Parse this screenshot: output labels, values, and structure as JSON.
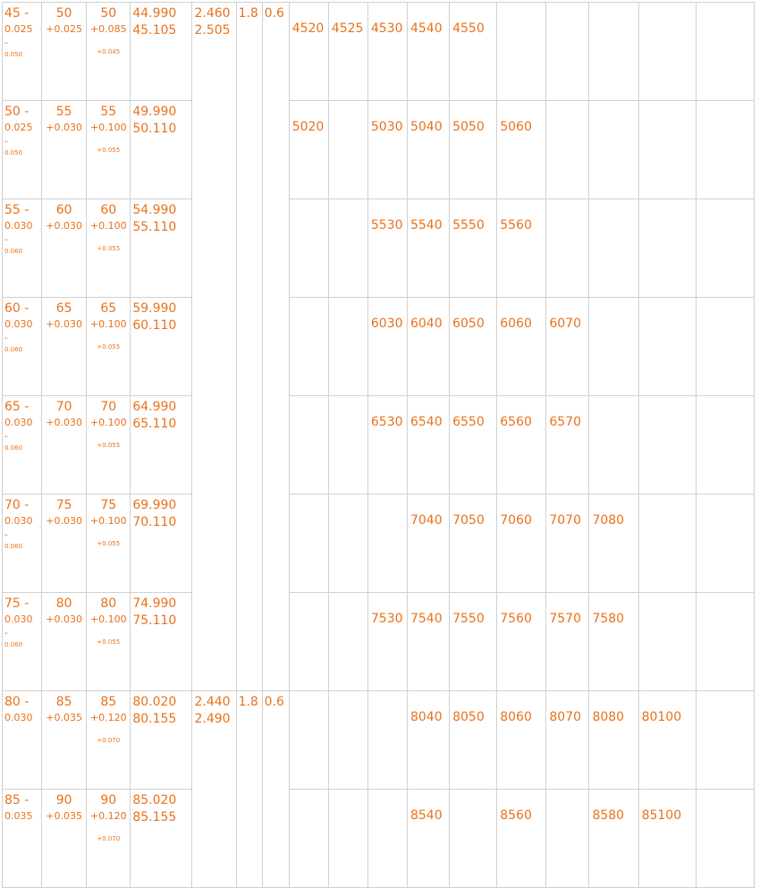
{
  "rows": [
    {
      "c1": [
        "45 -",
        "0.025",
        "-",
        "0.050"
      ],
      "c2": [
        "50",
        "+0.025"
      ],
      "c3": [
        "50",
        "+0.085",
        "+0.045"
      ],
      "c4": [
        "44.990",
        "45.105"
      ],
      "spec": {
        "wall": [
          "2.460",
          "2.505"
        ],
        "a": "1.8",
        "b": "0.6"
      },
      "parts": [
        "4520",
        "4525",
        "4530",
        "4540",
        "4550",
        null,
        null,
        null,
        null,
        null
      ]
    },
    {
      "c1": [
        "50 -",
        "0.025",
        "-",
        "0.050"
      ],
      "c2": [
        "55",
        "+0.030"
      ],
      "c3": [
        "55",
        "+0.100",
        "+0.055"
      ],
      "c4": [
        "49.990",
        "50.110"
      ],
      "parts": [
        "5020",
        null,
        "5030",
        "5040",
        "5050",
        "5060",
        null,
        null,
        null,
        null
      ]
    },
    {
      "c1": [
        "55 -",
        "0.030",
        "-",
        "0.060"
      ],
      "c2": [
        "60",
        "+0.030"
      ],
      "c3": [
        "60",
        "+0.100",
        "+0.055"
      ],
      "c4": [
        "54.990",
        "55.110"
      ],
      "parts": [
        null,
        null,
        "5530",
        "5540",
        "5550",
        "5560",
        null,
        null,
        null,
        null
      ]
    },
    {
      "c1": [
        "60 -",
        "0.030",
        "-",
        "0.060"
      ],
      "c2": [
        "65",
        "+0.030"
      ],
      "c3": [
        "65",
        "+0.100",
        "+0.055"
      ],
      "c4": [
        "59.990",
        "60.110"
      ],
      "parts": [
        null,
        null,
        "6030",
        "6040",
        "6050",
        "6060",
        "6070",
        null,
        null,
        null
      ]
    },
    {
      "c1": [
        "65 -",
        "0.030",
        "-",
        "0.060"
      ],
      "c2": [
        "70",
        "+0.030"
      ],
      "c3": [
        "70",
        "+0.100",
        "+0.055"
      ],
      "c4": [
        "64.990",
        "65.110"
      ],
      "parts": [
        null,
        null,
        "6530",
        "6540",
        "6550",
        "6560",
        "6570",
        null,
        null,
        null
      ]
    },
    {
      "c1": [
        "70 -",
        "0.030",
        "-",
        "0.060"
      ],
      "c2": [
        "75",
        "+0.030"
      ],
      "c3": [
        "75",
        "+0.100",
        "+0.055"
      ],
      "c4": [
        "69.990",
        "70.110"
      ],
      "parts": [
        null,
        null,
        null,
        "7040",
        "7050",
        "7060",
        "7070",
        "7080",
        null,
        null
      ]
    },
    {
      "c1": [
        "75 -",
        "0.030",
        "-",
        "0.060"
      ],
      "c2": [
        "80",
        "+0.030"
      ],
      "c3": [
        "80",
        "+0.100",
        "+0.055"
      ],
      "c4": [
        "74.990",
        "75.110"
      ],
      "parts": [
        null,
        null,
        "7530",
        "7540",
        "7550",
        "7560",
        "7570",
        "7580",
        null,
        null
      ]
    },
    {
      "c1": [
        "80 -",
        "0.030"
      ],
      "c2": [
        "85",
        "+0.035"
      ],
      "c3": [
        "85",
        "+0.120",
        "+0.070"
      ],
      "c4": [
        "80.020",
        "80.155"
      ],
      "spec": {
        "wall": [
          "2.440",
          "2.490"
        ],
        "a": "1.8",
        "b": "0.6"
      },
      "parts": [
        null,
        null,
        null,
        "8040",
        "8050",
        "8060",
        "8070",
        "8080",
        "80100",
        null
      ]
    },
    {
      "c1": [
        "85 -",
        "0.035"
      ],
      "c2": [
        "90",
        "+0.035"
      ],
      "c3": [
        "90",
        "+0.120",
        "+0.070"
      ],
      "c4": [
        "85.020",
        "85.155"
      ],
      "parts": [
        null,
        null,
        null,
        "8540",
        null,
        "8560",
        null,
        "8580",
        "85100",
        null
      ]
    }
  ]
}
